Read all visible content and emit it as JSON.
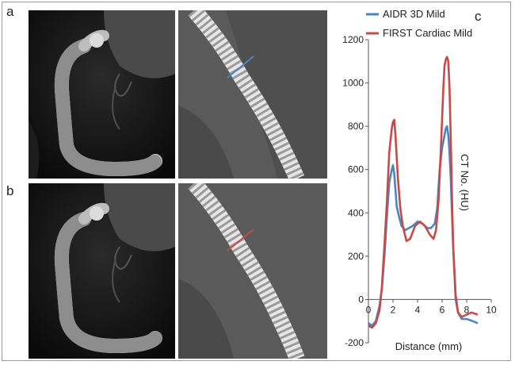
{
  "figure": {
    "panel_labels": {
      "a": "a",
      "b": "b",
      "c": "c"
    }
  },
  "chart_data": {
    "type": "line",
    "xlabel": "Distance (mm)",
    "ylabel": "CT No. (HU)",
    "xlim": [
      0,
      10
    ],
    "ylim": [
      -200,
      1200
    ],
    "xticks": [
      0,
      2,
      4,
      6,
      8,
      10
    ],
    "yticks": [
      -200,
      0,
      200,
      400,
      600,
      800,
      1000,
      1200
    ],
    "grid": false,
    "legend_position": "top",
    "series": [
      {
        "name": "AIDR 3D Mild",
        "color": "#4a86c0",
        "x": [
          0,
          0.3,
          0.6,
          0.9,
          1.1,
          1.3,
          1.5,
          1.7,
          1.9,
          2.0,
          2.1,
          2.3,
          2.5,
          2.7,
          3.0,
          3.3,
          3.6,
          4.0,
          4.4,
          4.8,
          5.1,
          5.4,
          5.6,
          5.8,
          6.0,
          6.2,
          6.3,
          6.4,
          6.5,
          6.6,
          6.7,
          6.8,
          6.9,
          7.1,
          7.3,
          7.6,
          8.0,
          8.5,
          8.9
        ],
        "y": [
          -110,
          -120,
          -100,
          -30,
          50,
          200,
          380,
          540,
          600,
          620,
          580,
          430,
          380,
          340,
          320,
          330,
          340,
          360,
          350,
          330,
          330,
          350,
          420,
          600,
          700,
          760,
          790,
          800,
          760,
          680,
          560,
          400,
          250,
          0,
          -60,
          -90,
          -90,
          -100,
          -110
        ]
      },
      {
        "name": "FIRST Cardiac Mild",
        "color": "#c84a48",
        "x": [
          0,
          0.3,
          0.6,
          0.9,
          1.1,
          1.3,
          1.5,
          1.7,
          1.9,
          2.0,
          2.1,
          2.2,
          2.4,
          2.6,
          2.8,
          3.1,
          3.4,
          3.8,
          4.2,
          4.6,
          5.0,
          5.3,
          5.5,
          5.7,
          5.9,
          6.1,
          6.2,
          6.3,
          6.4,
          6.5,
          6.6,
          6.7,
          6.8,
          6.9,
          7.1,
          7.3,
          7.6,
          8.0,
          8.4,
          8.9
        ],
        "y": [
          -120,
          -130,
          -110,
          -50,
          60,
          250,
          450,
          680,
          790,
          820,
          830,
          760,
          560,
          420,
          340,
          270,
          280,
          340,
          360,
          340,
          300,
          280,
          320,
          450,
          700,
          980,
          1080,
          1110,
          1120,
          1100,
          980,
          750,
          480,
          250,
          20,
          -60,
          -80,
          -70,
          -60,
          -70
        ]
      }
    ]
  },
  "colors": {
    "aidr": "#4a86c0",
    "first": "#c84a48",
    "axis": "#555555"
  }
}
